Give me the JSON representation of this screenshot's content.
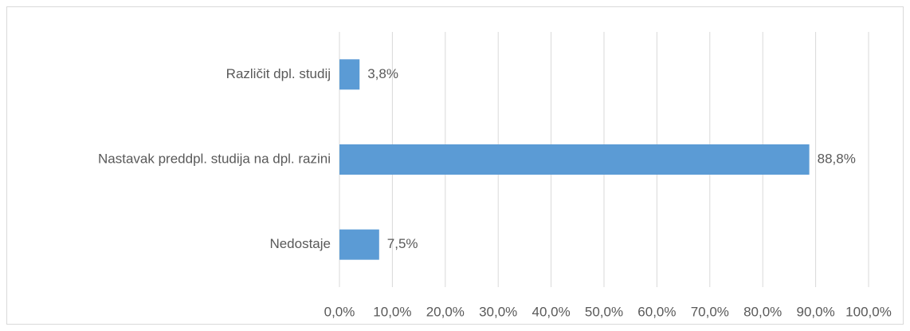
{
  "chart_data": {
    "type": "bar",
    "orientation": "horizontal",
    "categories": [
      "Različit dpl. studij",
      "Nastavak preddpl. studija na dpl. razini",
      "Nedostaje"
    ],
    "values": [
      3.8,
      88.8,
      7.5
    ],
    "value_labels": [
      "3,8%",
      "88,8%",
      "7,5%"
    ],
    "color": "#5b9bd5",
    "xlim": [
      0,
      100
    ],
    "xticks": [
      {
        "value": 0,
        "label": "0,0%"
      },
      {
        "value": 10,
        "label": "10,0%"
      },
      {
        "value": 20,
        "label": "20,0%"
      },
      {
        "value": 30,
        "label": "30,0%"
      },
      {
        "value": 40,
        "label": "40,0%"
      },
      {
        "value": 50,
        "label": "50,0%"
      },
      {
        "value": 60,
        "label": "60,0%"
      },
      {
        "value": 70,
        "label": "70,0%"
      },
      {
        "value": 80,
        "label": "80,0%"
      },
      {
        "value": 90,
        "label": "90,0%"
      },
      {
        "value": 100,
        "label": "100,0%"
      }
    ],
    "grid": true
  }
}
